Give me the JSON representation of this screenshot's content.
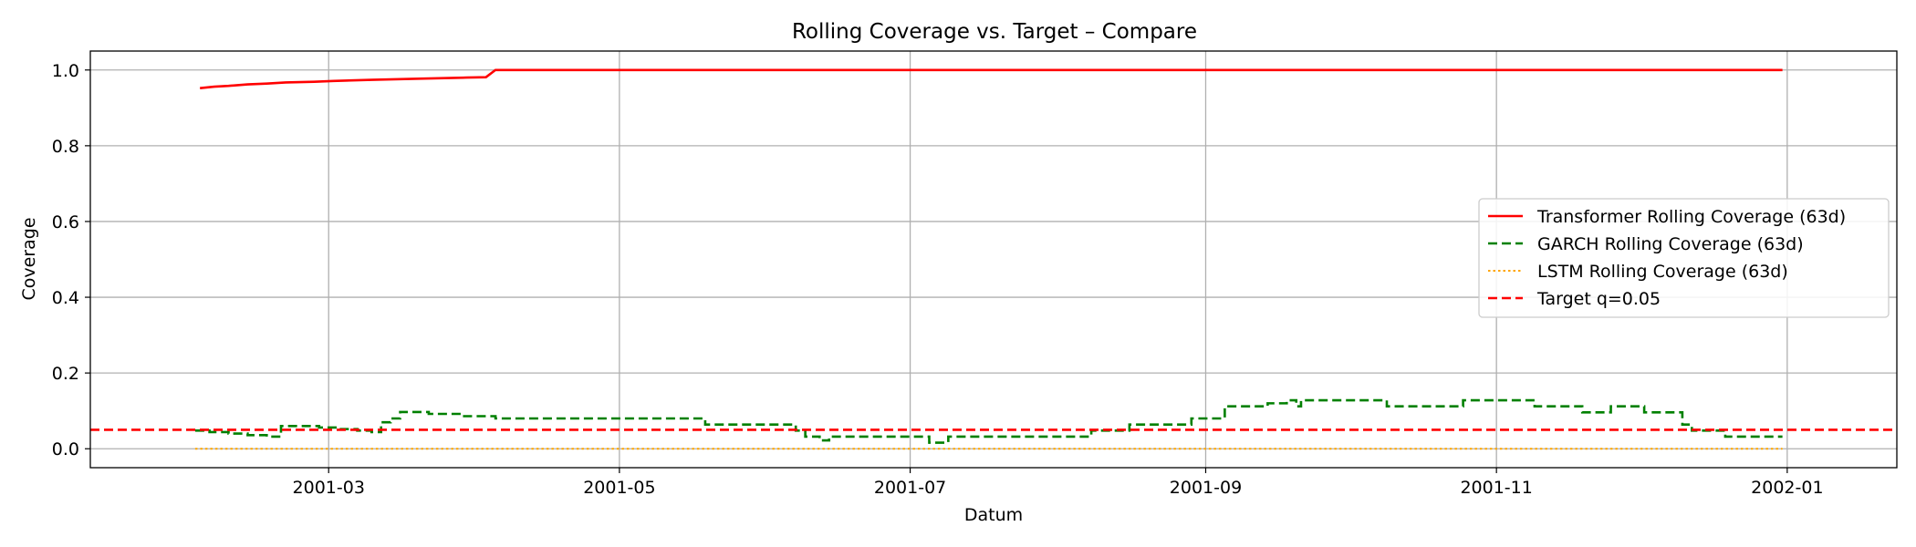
{
  "chart_data": {
    "type": "line",
    "title": "Rolling Coverage vs. Target – Compare",
    "xlabel": "Datum",
    "ylabel": "Coverage",
    "xlim": [
      "2001-01-10",
      "2002-01-24"
    ],
    "ylim": [
      -0.05,
      1.05
    ],
    "x_ticks": [
      "2001-03-01",
      "2001-05-01",
      "2001-07-01",
      "2001-09-01",
      "2001-11-01",
      "2002-01-01"
    ],
    "x_tick_labels": [
      "2001-03",
      "2001-05",
      "2001-07",
      "2001-09",
      "2001-11",
      "2002-01"
    ],
    "y_ticks": [
      0.0,
      0.2,
      0.4,
      0.6,
      0.8,
      1.0
    ],
    "y_tick_labels": [
      "0.0",
      "0.2",
      "0.4",
      "0.6",
      "0.8",
      "1.0"
    ],
    "grid": true,
    "legend_position": "right",
    "series": [
      {
        "name": "Transformer Rolling Coverage (63d)",
        "color": "#ff0000",
        "dash": "solid",
        "kind": "line",
        "points": [
          [
            "2001-02-02",
            0.952
          ],
          [
            "2001-02-05",
            0.956
          ],
          [
            "2001-02-08",
            0.958
          ],
          [
            "2001-02-12",
            0.962
          ],
          [
            "2001-02-16",
            0.964
          ],
          [
            "2001-02-20",
            0.967
          ],
          [
            "2001-02-26",
            0.969
          ],
          [
            "2001-03-02",
            0.971
          ],
          [
            "2001-03-10",
            0.974
          ],
          [
            "2001-03-20",
            0.977
          ],
          [
            "2001-03-30",
            0.98
          ],
          [
            "2001-04-03",
            0.981
          ],
          [
            "2001-04-05",
            1.0
          ],
          [
            "2001-12-31",
            1.0
          ]
        ]
      },
      {
        "name": "GARCH Rolling Coverage (63d)",
        "color": "#008000",
        "dash": "dashed",
        "kind": "step",
        "points": [
          [
            "2001-02-01",
            0.048
          ],
          [
            "2001-02-04",
            0.044
          ],
          [
            "2001-02-08",
            0.04
          ],
          [
            "2001-02-12",
            0.036
          ],
          [
            "2001-02-16",
            0.032
          ],
          [
            "2001-02-19",
            0.06
          ],
          [
            "2001-02-27",
            0.056
          ],
          [
            "2001-03-03",
            0.052
          ],
          [
            "2001-03-07",
            0.048
          ],
          [
            "2001-03-10",
            0.044
          ],
          [
            "2001-03-12",
            0.07
          ],
          [
            "2001-03-14",
            0.08
          ],
          [
            "2001-03-16",
            0.097
          ],
          [
            "2001-03-22",
            0.092
          ],
          [
            "2001-03-29",
            0.086
          ],
          [
            "2001-04-05",
            0.08
          ],
          [
            "2001-05-19",
            0.064
          ],
          [
            "2001-06-07",
            0.048
          ],
          [
            "2001-06-09",
            0.032
          ],
          [
            "2001-06-12",
            0.022
          ],
          [
            "2001-06-14",
            0.032
          ],
          [
            "2001-07-05",
            0.016
          ],
          [
            "2001-07-09",
            0.032
          ],
          [
            "2001-08-08",
            0.048
          ],
          [
            "2001-08-16",
            0.064
          ],
          [
            "2001-08-29",
            0.08
          ],
          [
            "2001-09-05",
            0.112
          ],
          [
            "2001-09-14",
            0.12
          ],
          [
            "2001-09-18",
            0.128
          ],
          [
            "2001-09-20",
            0.112
          ],
          [
            "2001-09-21",
            0.128
          ],
          [
            "2001-10-09",
            0.112
          ],
          [
            "2001-10-25",
            0.128
          ],
          [
            "2001-11-09",
            0.112
          ],
          [
            "2001-11-19",
            0.096
          ],
          [
            "2001-11-25",
            0.112
          ],
          [
            "2001-12-02",
            0.096
          ],
          [
            "2001-12-10",
            0.064
          ],
          [
            "2001-12-12",
            0.048
          ],
          [
            "2001-12-19",
            0.032
          ],
          [
            "2001-12-31",
            0.032
          ]
        ]
      },
      {
        "name": "LSTM Rolling Coverage (63d)",
        "color": "#ffa500",
        "dash": "dotted",
        "kind": "line",
        "points": [
          [
            "2001-02-01",
            0.0
          ],
          [
            "2001-12-31",
            0.0
          ]
        ]
      },
      {
        "name": "Target q=0.05",
        "color": "#ff0000",
        "dash": "dashed",
        "kind": "hline",
        "value": 0.05
      }
    ]
  }
}
